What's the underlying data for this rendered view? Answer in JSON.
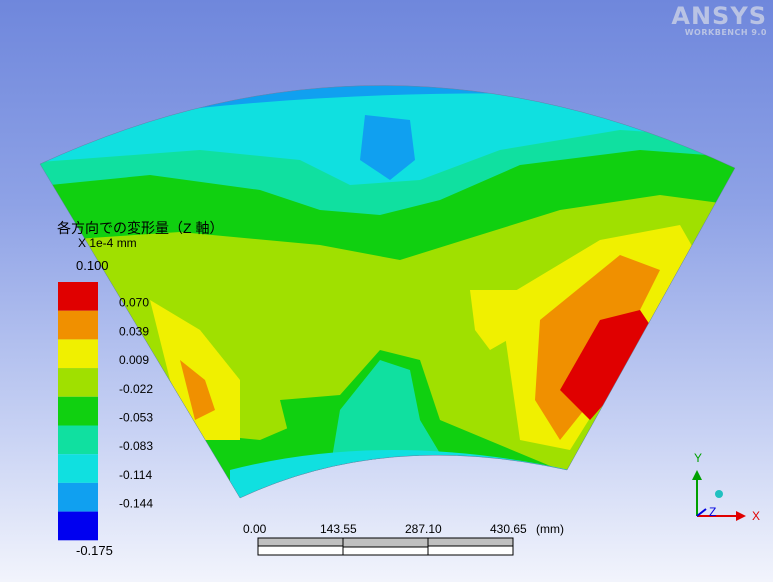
{
  "logo": {
    "brand": "ANSYS",
    "sub": "WORKBENCH 9.0"
  },
  "legend": {
    "title": "各方向での変形量（Z 軸）",
    "unit": "X 1e-4 mm",
    "max_label": "0.100",
    "min_label": "-0.175",
    "band_labels": [
      "0.070",
      "0.039",
      "0.009",
      "-0.022",
      "-0.053",
      "-0.083",
      "-0.114",
      "-0.144"
    ],
    "band_colors": [
      "#e00000",
      "#f09000",
      "#f0f000",
      "#a0e000",
      "#10d010",
      "#10e0a0",
      "#10e0e0",
      "#10a0f0",
      "#0000f0"
    ]
  },
  "scale_bar": {
    "ticks": [
      "0.00",
      "143.55",
      "287.10",
      "430.65"
    ],
    "unit": "(mm)"
  },
  "triad": {
    "x_label": "X",
    "y_label": "Y",
    "z_label": "Z"
  }
}
